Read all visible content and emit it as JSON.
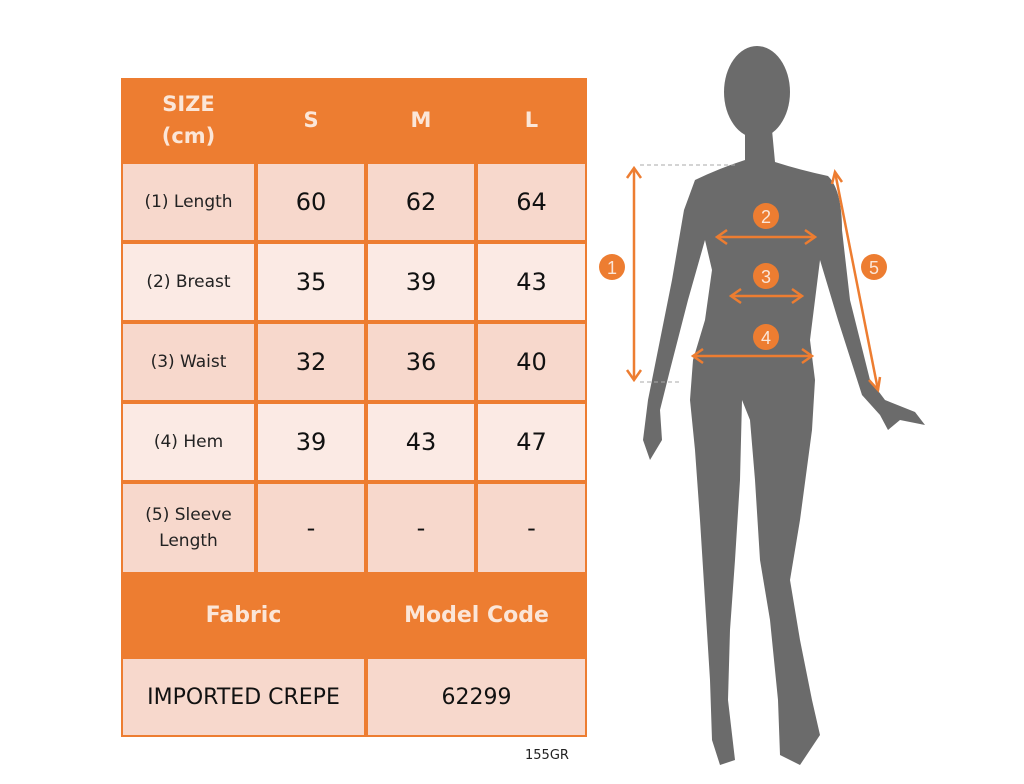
{
  "table": {
    "header": [
      "SIZE\n(cm)",
      "S",
      "M",
      "L"
    ],
    "header_size_line1": "SIZE",
    "header_size_line2": "(cm)",
    "rows": [
      {
        "label": "(1) Length",
        "values": [
          "60",
          "62",
          "64"
        ]
      },
      {
        "label": "(2) Breast",
        "values": [
          "35",
          "39",
          "43"
        ]
      },
      {
        "label": "(3) Waist",
        "values": [
          "32",
          "36",
          "40"
        ]
      },
      {
        "label": "(4) Hem",
        "values": [
          "39",
          "43",
          "47"
        ]
      },
      {
        "label_line1": "(5) Sleeve",
        "label_line2": "Length",
        "values": [
          "-",
          "-",
          "-"
        ]
      }
    ],
    "fabric_header": "Fabric",
    "model_code_header": "Model Code",
    "fabric_value": "IMPORTED CREPE",
    "model_code_value": "62299"
  },
  "footer_code": "155GR",
  "figure": {
    "markers": [
      "1",
      "2",
      "3",
      "4",
      "5"
    ],
    "colors": {
      "accent": "#ED7D31",
      "silhouette": "#6b6b6b",
      "row_dark": "#F7D8CC",
      "row_light": "#FBEAE4"
    }
  }
}
